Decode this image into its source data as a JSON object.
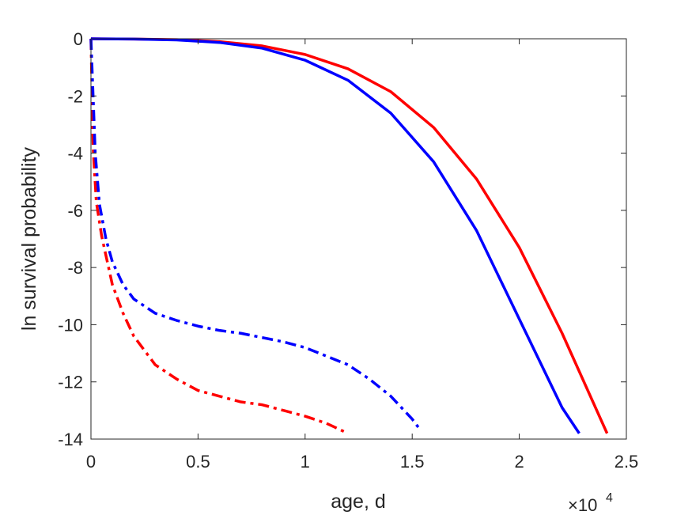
{
  "chart_data": {
    "type": "line",
    "title": "",
    "xlabel": "age, d",
    "ylabel": "ln survival probability",
    "x_exponent_label": "×10",
    "x_exponent": "4",
    "xlim": [
      0,
      25000
    ],
    "ylim": [
      -14,
      0
    ],
    "x_ticks": [
      0,
      5000,
      10000,
      15000,
      20000,
      25000
    ],
    "x_tick_labels": [
      "0",
      "0.5",
      "1",
      "1.5",
      "2",
      "2.5"
    ],
    "y_ticks": [
      0,
      -2,
      -4,
      -6,
      -8,
      -10,
      -12,
      -14
    ],
    "y_tick_labels": [
      "0",
      "-2",
      "-4",
      "-6",
      "-8",
      "-10",
      "-12",
      "-14"
    ],
    "grid": false,
    "legend": "none",
    "series": [
      {
        "color": "#ff0000",
        "style": "solid",
        "x": [
          0,
          2000,
          4000,
          6000,
          8000,
          10000,
          12000,
          14000,
          16000,
          18000,
          20000,
          22000,
          24100
        ],
        "y": [
          0,
          -0.01,
          -0.03,
          -0.1,
          -0.25,
          -0.55,
          -1.05,
          -1.85,
          -3.1,
          -4.9,
          -7.3,
          -10.3,
          -13.8
        ]
      },
      {
        "color": "#0000ff",
        "style": "solid",
        "x": [
          0,
          2000,
          4000,
          6000,
          8000,
          10000,
          12000,
          14000,
          16000,
          18000,
          20000,
          22000,
          22800
        ],
        "y": [
          0,
          -0.01,
          -0.04,
          -0.13,
          -0.33,
          -0.75,
          -1.45,
          -2.6,
          -4.3,
          -6.7,
          -9.8,
          -12.9,
          -13.8
        ]
      },
      {
        "color": "#ff0000",
        "style": "dashdot",
        "x": [
          0,
          100,
          250,
          500,
          1000,
          1500,
          2000,
          3000,
          4000,
          5000,
          6000,
          7000,
          8000,
          9000,
          10000,
          11000,
          12000
        ],
        "y": [
          0,
          -3.8,
          -5.7,
          -6.9,
          -8.6,
          -9.6,
          -10.4,
          -11.4,
          -11.9,
          -12.3,
          -12.5,
          -12.7,
          -12.8,
          -13.0,
          -13.2,
          -13.45,
          -13.8
        ]
      },
      {
        "color": "#0000ff",
        "style": "dashdot",
        "x": [
          0,
          100,
          200,
          400,
          700,
          1000,
          1500,
          2000,
          3000,
          4000,
          5000,
          6000,
          7000,
          8000,
          9000,
          10000,
          11000,
          12000,
          13000,
          14000,
          15000,
          15400
        ],
        "y": [
          0,
          -2.0,
          -4.0,
          -5.8,
          -7.0,
          -7.8,
          -8.6,
          -9.1,
          -9.6,
          -9.85,
          -10.05,
          -10.2,
          -10.3,
          -10.45,
          -10.6,
          -10.8,
          -11.1,
          -11.4,
          -11.9,
          -12.5,
          -13.3,
          -13.7
        ]
      }
    ]
  }
}
